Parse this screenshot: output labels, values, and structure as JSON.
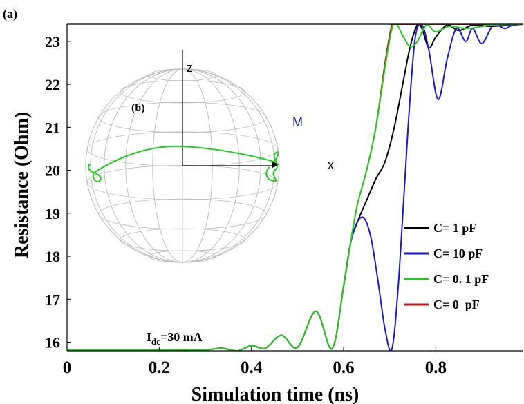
{
  "panel_labels": {
    "main": "(a)",
    "inset": "(b)"
  },
  "annotation": {
    "main": "I",
    "sub": "dc",
    "rest": "=30 mA"
  },
  "inset_labels": {
    "z": "z",
    "m": "M",
    "x": "x"
  },
  "colors": {
    "C= 1 pF": "#000000",
    "C= 10 pF": "#1a1ac8",
    "C= 0. 1 pF": "#22cc22",
    "C= 0  pF": "#cc1111",
    "sphere": "#bdbdbd",
    "m_label": "#1a1ac8"
  },
  "chart_data": {
    "type": "line",
    "xlabel": "Simulation time (ns)",
    "ylabel": "Resistance (Ohm)",
    "xlim": [
      0,
      0.99
    ],
    "ylim": [
      15.8,
      23.4
    ],
    "xticks": [
      0,
      0.2,
      0.4,
      0.6,
      0.8
    ],
    "xtick_labels": [
      "0",
      "0.2",
      "0.4",
      "0.6",
      "0.8"
    ],
    "yticks": [
      16,
      17,
      18,
      19,
      20,
      21,
      22,
      23
    ],
    "ytick_labels": [
      "16",
      "17",
      "18",
      "19",
      "20",
      "21",
      "22",
      "23"
    ],
    "grid": false,
    "legend_position": "bottom-right",
    "series": [
      {
        "name": "C= 1 pF",
        "x": [
          0,
          0.2,
          0.25,
          0.3,
          0.335,
          0.37,
          0.4,
          0.43,
          0.465,
          0.5,
          0.54,
          0.575,
          0.6,
          0.615,
          0.63,
          0.65,
          0.67,
          0.69,
          0.71,
          0.73,
          0.745,
          0.76,
          0.77,
          0.785,
          0.8,
          0.825,
          0.85,
          0.88,
          0.92,
          0.99
        ],
        "y": [
          15.82,
          15.82,
          15.83,
          15.82,
          15.86,
          15.8,
          15.92,
          15.86,
          16.16,
          15.88,
          16.72,
          15.85,
          17.3,
          18.3,
          18.8,
          19.3,
          19.8,
          20.2,
          21.0,
          22.1,
          22.9,
          23.38,
          23.3,
          22.85,
          23.1,
          23.38,
          23.25,
          23.38,
          23.35,
          23.4
        ]
      },
      {
        "name": "C= 10 pF",
        "x": [
          0,
          0.2,
          0.25,
          0.3,
          0.335,
          0.37,
          0.4,
          0.43,
          0.465,
          0.5,
          0.54,
          0.575,
          0.6,
          0.615,
          0.63,
          0.645,
          0.66,
          0.675,
          0.69,
          0.705,
          0.72,
          0.74,
          0.755,
          0.77,
          0.785,
          0.805,
          0.825,
          0.845,
          0.865,
          0.88,
          0.9,
          0.925,
          0.95,
          0.97,
          0.99
        ],
        "y": [
          15.82,
          15.82,
          15.83,
          15.82,
          15.86,
          15.8,
          15.92,
          15.86,
          16.16,
          15.88,
          16.72,
          15.85,
          17.3,
          18.3,
          18.8,
          18.88,
          18.4,
          17.4,
          16.3,
          15.85,
          17.5,
          21.0,
          23.05,
          23.38,
          22.8,
          21.65,
          22.6,
          23.3,
          23.0,
          23.3,
          22.95,
          23.38,
          23.3,
          23.4,
          23.4
        ]
      },
      {
        "name": "C= 0. 1 pF",
        "x": [
          0,
          0.2,
          0.25,
          0.3,
          0.335,
          0.37,
          0.4,
          0.43,
          0.465,
          0.5,
          0.54,
          0.575,
          0.6,
          0.615,
          0.63,
          0.65,
          0.67,
          0.69,
          0.705,
          0.715,
          0.73,
          0.745,
          0.76,
          0.78,
          0.8,
          0.83,
          0.87,
          0.92,
          0.99
        ],
        "y": [
          15.82,
          15.82,
          15.83,
          15.82,
          15.86,
          15.8,
          15.92,
          15.86,
          16.16,
          15.88,
          16.72,
          15.85,
          17.3,
          18.3,
          19.2,
          20.0,
          21.0,
          22.4,
          23.3,
          23.4,
          23.1,
          22.88,
          23.0,
          23.38,
          23.22,
          23.35,
          23.3,
          23.38,
          23.4
        ]
      },
      {
        "name": "C= 0  pF",
        "x": [
          0,
          0.2,
          0.25,
          0.3,
          0.335,
          0.37,
          0.4,
          0.43,
          0.465,
          0.5,
          0.54,
          0.575,
          0.6,
          0.615,
          0.63,
          0.65,
          0.67,
          0.69,
          0.705,
          0.712,
          0.99
        ],
        "y": [
          15.82,
          15.82,
          15.83,
          15.82,
          15.86,
          15.8,
          15.92,
          15.86,
          16.16,
          15.88,
          16.72,
          15.85,
          17.3,
          18.3,
          19.2,
          20.0,
          21.0,
          22.5,
          23.4,
          23.4,
          23.4
        ]
      }
    ]
  }
}
